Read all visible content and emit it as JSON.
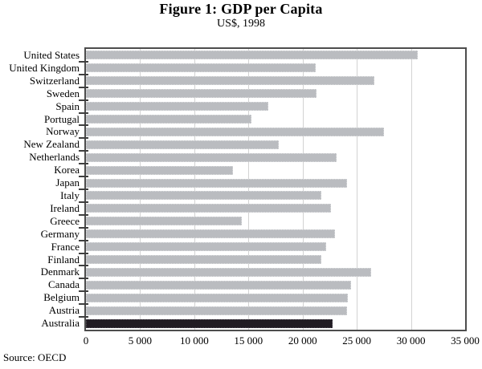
{
  "figure": {
    "title": "Figure 1: GDP per Capita",
    "subtitle": "US$, 1998",
    "source": "Source: OECD"
  },
  "chart_data": {
    "type": "bar",
    "orientation": "horizontal",
    "title": "Figure 1: GDP per Capita",
    "subtitle": "US$, 1998",
    "xlabel": "",
    "ylabel": "",
    "categories": [
      "United States",
      "United Kingdom",
      "Switzerland",
      "Sweden",
      "Spain",
      "Portugal",
      "Norway",
      "New Zealand",
      "Netherlands",
      "Korea",
      "Japan",
      "Italy",
      "Ireland",
      "Greece",
      "Germany",
      "France",
      "Finland",
      "Denmark",
      "Canada",
      "Belgium",
      "Austria",
      "Australia"
    ],
    "values": [
      30600,
      21200,
      26600,
      21300,
      16800,
      15300,
      27500,
      17800,
      23100,
      13600,
      24100,
      21700,
      22600,
      14400,
      23000,
      22200,
      21700,
      26300,
      24500,
      24200,
      24100,
      22800
    ],
    "xlim": [
      0,
      35000
    ],
    "xticks": [
      0,
      5000,
      10000,
      15000,
      20000,
      25000,
      30000,
      35000
    ],
    "xtick_labels": [
      "0",
      "5 000",
      "10 000",
      "15 000",
      "20 000",
      "25 000",
      "30 000",
      "35 000"
    ],
    "grid": "vertical",
    "legend": "none",
    "bar_color": "#babcc0",
    "bar_edge_color": "#dcdddf",
    "highlight_category": "Australia",
    "highlight_color": "#211c23",
    "highlight_edge_color": "#55505a",
    "frame_color": "#4d4d4d",
    "gridline_color": "#d3d3d3",
    "source": "Source: OECD"
  }
}
